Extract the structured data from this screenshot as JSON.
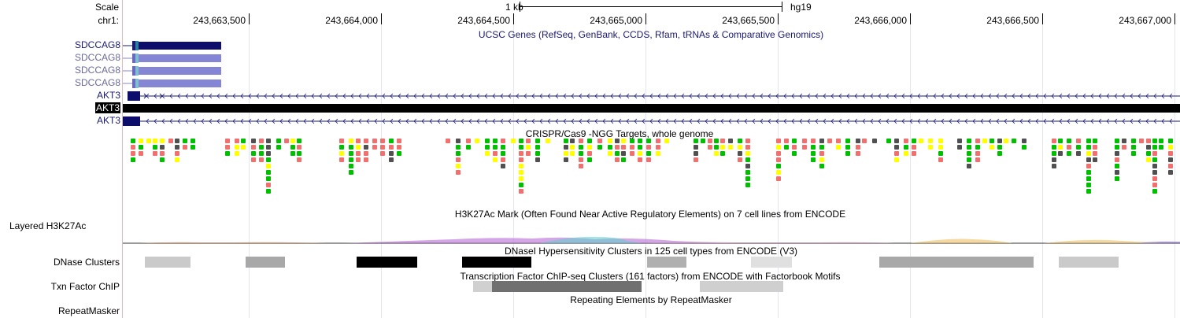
{
  "labels": {
    "scale": "Scale",
    "chrom": "chr1:",
    "scale_bar_text": "1 kb",
    "assembly": "hg19",
    "layered_h3k27ac": "Layered H3K27Ac",
    "dnase_clusters": "DNase Clusters",
    "txn_factor_chip": "Txn Factor ChIP",
    "repeatmasker": "RepeatMasker"
  },
  "ruler_ticks": [
    "243,663,500",
    "243,664,000",
    "243,664,500",
    "243,665,000",
    "243,665,500",
    "243,666,000",
    "243,666,500",
    "243,667,000"
  ],
  "track_titles": {
    "ucsc_genes": "UCSC Genes (RefSeq, GenBank, CCDS, Rfam, tRNAs & Comparative Genomics)",
    "crispr": "CRISPR/Cas9 -NGG Targets, whole genome",
    "h3k27ac": "H3K27Ac Mark (Often Found Near Active Regulatory Elements) on 7 cell lines from ENCODE",
    "dnase": "DNaseI Hypersensitivity Clusters in 125 cell types from ENCODE (V3)",
    "txn": "Transcription Factor ChIP-seq Clusters (161 factors) from ENCODE with Factorbook Motifs",
    "repeat": "Repeating Elements by RepeatMasker"
  },
  "genes": [
    {
      "name": "SDCCAG8"
    },
    {
      "name": "SDCCAG8"
    },
    {
      "name": "SDCCAG8"
    },
    {
      "name": "SDCCAG8"
    },
    {
      "name": "AKT3"
    },
    {
      "name": "AKT3"
    },
    {
      "name": "AKT3"
    }
  ],
  "colors": {
    "navy": "#1a1a73",
    "light_gene": "#8585d6",
    "crispr_green": "#00bf00",
    "crispr_yellow": "#ffff00",
    "crispr_red": "#f07070",
    "crispr_gray": "#505050"
  }
}
